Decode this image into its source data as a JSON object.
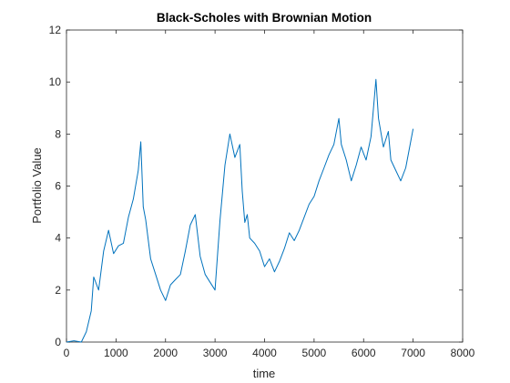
{
  "chart_data": {
    "type": "line",
    "title": "Black-Scholes with Brownian Motion",
    "xlabel": "time",
    "ylabel": "Portfolio Value",
    "xlim": [
      0,
      8000
    ],
    "ylim": [
      0,
      12
    ],
    "xticks": [
      0,
      1000,
      2000,
      3000,
      4000,
      5000,
      6000,
      7000,
      8000
    ],
    "yticks": [
      0,
      2,
      4,
      6,
      8,
      10,
      12
    ],
    "grid": false,
    "line_color": "#0072BD",
    "series": [
      {
        "x": [
          0,
          150,
          300,
          400,
          500,
          550,
          650,
          750,
          850,
          950,
          1050,
          1150,
          1250,
          1350,
          1450,
          1500,
          1550,
          1600,
          1700,
          1800,
          1900,
          2000,
          2100,
          2200,
          2300,
          2400,
          2500,
          2600,
          2700,
          2800,
          2900,
          3000,
          3100,
          3200,
          3300,
          3400,
          3500,
          3550,
          3600,
          3650,
          3700,
          3800,
          3900,
          4000,
          4100,
          4200,
          4300,
          4400,
          4500,
          4600,
          4700,
          4800,
          4900,
          5000,
          5100,
          5200,
          5300,
          5400,
          5500,
          5550,
          5650,
          5750,
          5850,
          5950,
          6050,
          6150,
          6200,
          6250,
          6300,
          6400,
          6500,
          6550,
          6650,
          6750,
          6850,
          7000
        ],
        "y": [
          0.0,
          0.05,
          0.0,
          0.4,
          1.2,
          2.5,
          2.0,
          3.5,
          4.3,
          3.4,
          3.7,
          3.8,
          4.8,
          5.5,
          6.6,
          7.7,
          5.2,
          4.7,
          3.2,
          2.6,
          2.0,
          1.6,
          2.2,
          2.4,
          2.6,
          3.5,
          4.5,
          4.9,
          3.3,
          2.6,
          2.3,
          2.0,
          4.7,
          6.8,
          8.0,
          7.1,
          7.6,
          5.8,
          4.6,
          4.9,
          4.0,
          3.8,
          3.5,
          2.9,
          3.2,
          2.7,
          3.1,
          3.6,
          4.2,
          3.9,
          4.3,
          4.8,
          5.3,
          5.6,
          6.2,
          6.7,
          7.2,
          7.6,
          8.6,
          7.6,
          7.0,
          6.2,
          6.8,
          7.5,
          7.0,
          7.9,
          9.0,
          10.1,
          8.6,
          7.5,
          8.1,
          7.0,
          6.6,
          6.2,
          6.7,
          8.2
        ]
      }
    ]
  }
}
